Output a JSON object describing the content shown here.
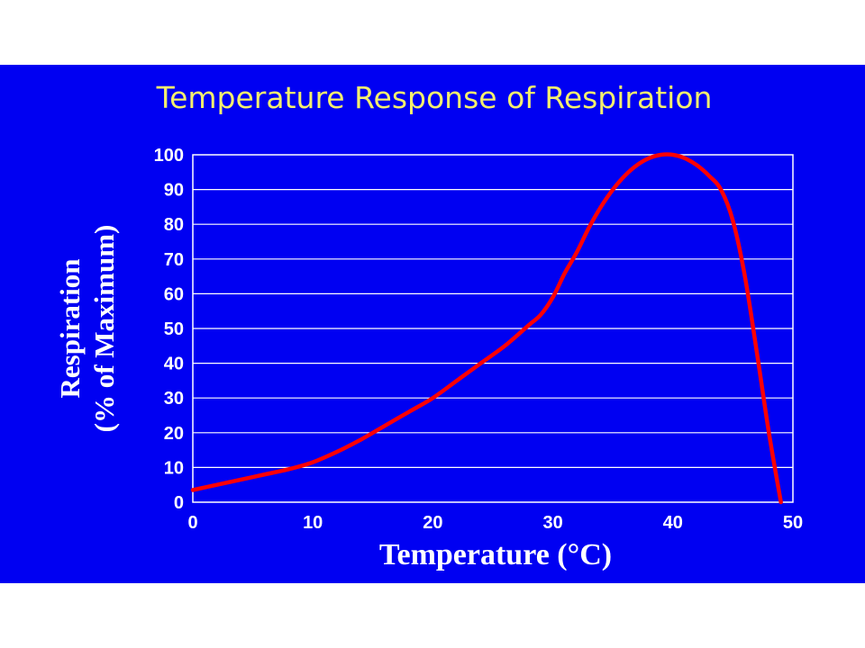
{
  "colors": {
    "background": "#0000f2",
    "plot_background": "#0000f2",
    "gridline": "#ffffff",
    "line": "#ff0000",
    "title": "#f4ef6e",
    "text": "#ffffff"
  },
  "chart_data": {
    "type": "line",
    "title": "Temperature Response of Respiration",
    "xlabel": "Temperature (°C)",
    "ylabel_line1": "Respiration",
    "ylabel_line2": "(% of Maximum)",
    "xlim": [
      0,
      50
    ],
    "ylim": [
      0,
      100
    ],
    "xticks": [
      "0",
      "10",
      "20",
      "30",
      "40",
      "50"
    ],
    "yticks": [
      "0",
      "10",
      "20",
      "30",
      "40",
      "50",
      "60",
      "70",
      "80",
      "90",
      "100"
    ],
    "grid": "horizontal",
    "series": [
      {
        "color": "#ff0000",
        "x": [
          0,
          2,
          4,
          6,
          8,
          10,
          12,
          14,
          16,
          18,
          20,
          22,
          24,
          26,
          28,
          29,
          30,
          31,
          32,
          33,
          34,
          35,
          36,
          37,
          38,
          39,
          40,
          41,
          42,
          43,
          44,
          45,
          46,
          47,
          48,
          49
        ],
        "y": [
          3.5,
          5,
          6.5,
          8,
          9.5,
          11.5,
          14.5,
          18,
          22,
          26,
          30,
          35,
          40,
          45,
          51,
          54,
          59,
          66,
          72,
          79,
          85,
          90,
          94,
          97,
          99,
          100,
          100,
          99,
          97,
          94,
          90,
          81,
          65,
          43,
          20,
          0
        ]
      }
    ]
  }
}
